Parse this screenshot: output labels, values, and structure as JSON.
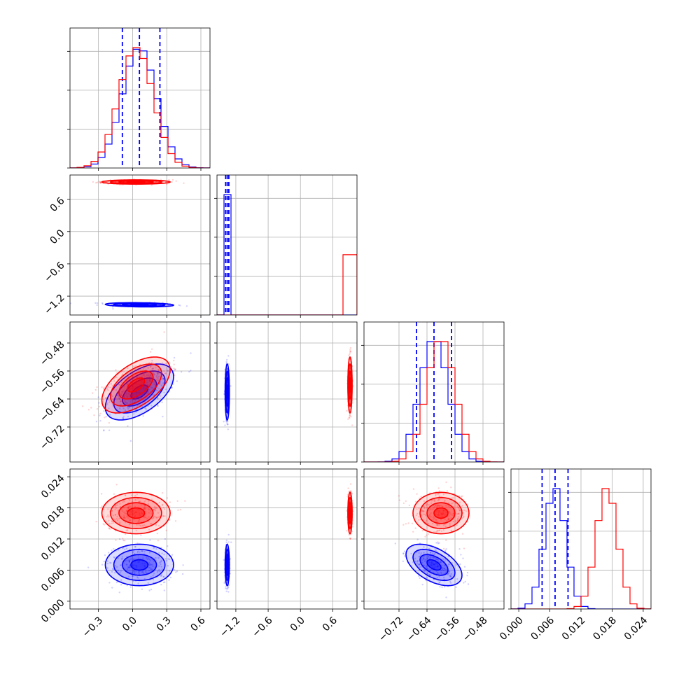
{
  "chart_data": {
    "type": "corner",
    "n_params": 4,
    "grid": true,
    "series": [
      {
        "name": "",
        "color": "#0000ff",
        "mean": [
          0.06,
          -1.36,
          -0.62,
          0.007
        ],
        "std": [
          0.15,
          0.02,
          0.04,
          0.002
        ],
        "corr": {
          "0-2": 0.55,
          "2-3": -0.5,
          "0-1": -0.2,
          "0-3": 0.0,
          "1-2": 0.0,
          "1-3": 0.0
        },
        "quantiles": [
          [
            -0.09,
            0.06,
            0.24
          ],
          [
            -1.39,
            -1.36,
            -1.33
          ],
          [
            -0.67,
            -0.62,
            -0.57
          ],
          [
            0.0045,
            0.007,
            0.0095
          ]
        ]
      },
      {
        "name": "",
        "color": "#ff0000",
        "mean": [
          0.03,
          0.92,
          -0.6,
          0.017
        ],
        "std": [
          0.15,
          0.02,
          0.04,
          0.002
        ],
        "corr": {
          "0-2": 0.55,
          "2-3": 0.0,
          "0-1": 0.0,
          "0-3": 0.0,
          "1-2": 0.0,
          "1-3": 0.0
        },
        "quantiles": null
      }
    ],
    "ranges": [
      [
        -0.55,
        0.68
      ],
      [
        -1.55,
        1.05
      ],
      [
        -0.82,
        -0.42
      ],
      [
        -0.0015,
        0.0255
      ]
    ],
    "axes": [
      {
        "ticks": [
          -0.3,
          0.0,
          0.3,
          0.6
        ],
        "tick_labels": [
          "−0.3",
          "0.0",
          "0.3",
          "0.6"
        ]
      },
      {
        "ticks": [
          -1.2,
          -0.6,
          0.0,
          0.6
        ],
        "tick_labels": [
          "−1.2",
          "−0.6",
          "0.0",
          "0.6"
        ]
      },
      {
        "ticks": [
          -0.72,
          -0.64,
          -0.56,
          -0.48
        ],
        "tick_labels": [
          "−0.72",
          "−0.64",
          "−0.56",
          "−0.48"
        ]
      },
      {
        "ticks": [
          0.0,
          0.006,
          0.012,
          0.018,
          0.024
        ],
        "tick_labels": [
          "0.000",
          "0.006",
          "0.012",
          "0.018",
          "0.024"
        ]
      }
    ]
  }
}
